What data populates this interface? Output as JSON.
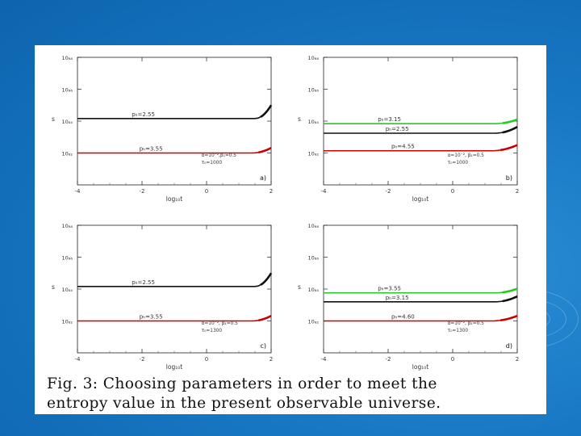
{
  "caption": {
    "line1": "Fig. 3: Choosing parameters in order to meet the",
    "line2": "entropy value in the present observable universe."
  },
  "colors": {
    "background": "#1878c4",
    "green": "#22cc22",
    "black": "#111111",
    "red": "#cc0000"
  },
  "chart_data": [
    {
      "type": "line",
      "panel_label": "a)",
      "xlabel": "log₁₀t",
      "ylabel": "s",
      "xlim": [
        -4,
        2
      ],
      "xticks": [
        "-4",
        "-2",
        "0",
        "2"
      ],
      "y_levels": 4,
      "yticks": [
        "10₈₈",
        "10₈₆",
        "10₈₄",
        "10₈₂"
      ],
      "params": [
        "α=10⁻²,β₁=0.5",
        "τ₀=1000"
      ],
      "series": [
        {
          "name": "pₕ=2.55",
          "color": "black",
          "level": 2.08,
          "rise": 0.42,
          "rise_start": 1.5
        },
        {
          "name": "pₕ=3.55",
          "color": "red",
          "level": 1.0,
          "rise": 0.16,
          "rise_start": 1.4
        }
      ]
    },
    {
      "type": "line",
      "panel_label": "b)",
      "xlabel": "log₁₀t",
      "ylabel": "s",
      "xlim": [
        -4,
        2
      ],
      "xticks": [
        "-4",
        "-2",
        "0",
        "2"
      ],
      "y_levels": 4,
      "yticks": [
        "10₈₈",
        "10₈₆",
        "10₈₄",
        "10₈₂"
      ],
      "params": [
        "α=10⁻², β₁=0.5",
        "τ₀=1000"
      ],
      "series": [
        {
          "name": "pₕ=3.15",
          "color": "green",
          "level": 1.92,
          "rise": 0.13,
          "rise_start": 1.3
        },
        {
          "name": "pₕ=2.55",
          "color": "black",
          "level": 1.62,
          "rise": 0.2,
          "rise_start": 1.3
        },
        {
          "name": "pₕ=4.55",
          "color": "red",
          "level": 1.07,
          "rise": 0.18,
          "rise_start": 1.2
        }
      ]
    },
    {
      "type": "line",
      "panel_label": "c)",
      "xlabel": "log₁₀t",
      "ylabel": "s",
      "xlim": [
        -4,
        2
      ],
      "xticks": [
        "-4",
        "-2",
        "0",
        "2"
      ],
      "y_levels": 4,
      "yticks": [
        "10₈₈",
        "10₈₆",
        "10₈₄",
        "10₈₂"
      ],
      "params": [
        "α=10⁻², β₁=0.5",
        "τ₀=1300"
      ],
      "series": [
        {
          "name": "pₕ=2.55",
          "color": "black",
          "level": 2.08,
          "rise": 0.42,
          "rise_start": 1.5
        },
        {
          "name": "pₕ=3.55",
          "color": "red",
          "level": 1.0,
          "rise": 0.16,
          "rise_start": 1.4
        }
      ]
    },
    {
      "type": "line",
      "panel_label": "d)",
      "xlabel": "log₁₀t",
      "ylabel": "s",
      "xlim": [
        -4,
        2
      ],
      "xticks": [
        "-4",
        "-2",
        "0",
        "2"
      ],
      "y_levels": 4,
      "yticks": [
        "10₈₈",
        "10₈₆",
        "10₈₄",
        "10₈₂"
      ],
      "params": [
        "α=10⁻², β₁=0.5",
        "τ₀=1300"
      ],
      "series": [
        {
          "name": "pₕ=3.55",
          "color": "green",
          "level": 1.88,
          "rise": 0.13,
          "rise_start": 1.3
        },
        {
          "name": "pₕ=3.15",
          "color": "black",
          "level": 1.6,
          "rise": 0.17,
          "rise_start": 1.3
        },
        {
          "name": "pₕ=4.60",
          "color": "red",
          "level": 1.0,
          "rise": 0.16,
          "rise_start": 1.2
        }
      ]
    }
  ]
}
